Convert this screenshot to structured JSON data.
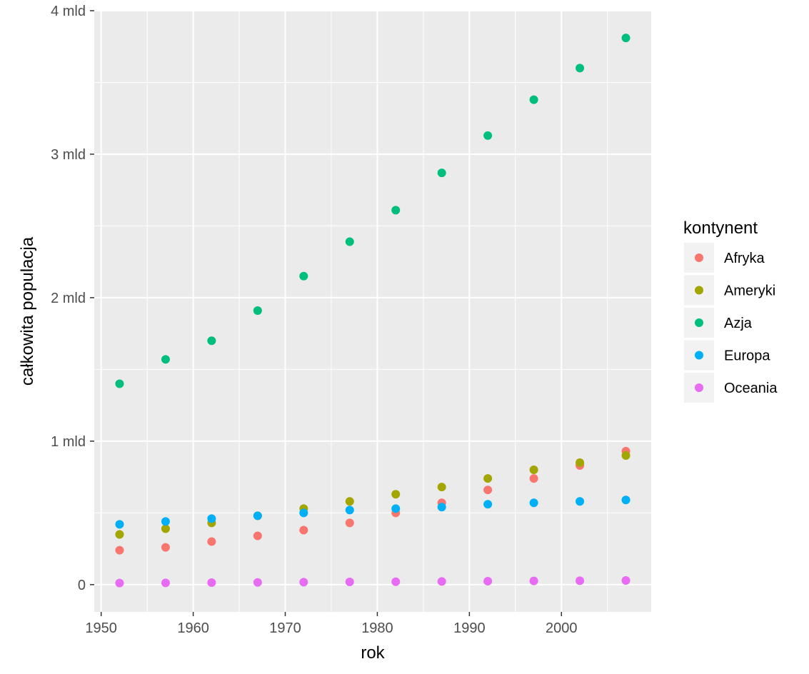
{
  "chart_data": {
    "type": "scatter",
    "title": "",
    "xlabel": "rok",
    "ylabel": "całkowita populacja",
    "xlim": [
      1949.25,
      2009.75
    ],
    "ylim": [
      -0.19,
      4.0
    ],
    "x_ticks": [
      1950,
      1960,
      1970,
      1980,
      1990,
      2000
    ],
    "x_tick_labels": [
      "1950",
      "1960",
      "1970",
      "1980",
      "1990",
      "2000"
    ],
    "y_ticks": [
      0,
      1,
      2,
      3,
      4
    ],
    "y_tick_labels": [
      "0",
      "1 mld",
      "2 mld",
      "3 mld",
      "4 mld"
    ],
    "grid": true,
    "legend_title": "kontynent",
    "legend_position": "right",
    "x": [
      1952,
      1957,
      1962,
      1967,
      1972,
      1977,
      1982,
      1987,
      1992,
      1997,
      2002,
      2007
    ],
    "series": [
      {
        "name": "Afryka",
        "color": "#F8766D",
        "values": [
          0.24,
          0.26,
          0.3,
          0.34,
          0.38,
          0.43,
          0.5,
          0.57,
          0.66,
          0.74,
          0.83,
          0.93
        ]
      },
      {
        "name": "Ameryki",
        "color": "#A3A500",
        "values": [
          0.35,
          0.39,
          0.43,
          0.48,
          0.53,
          0.58,
          0.63,
          0.68,
          0.74,
          0.8,
          0.85,
          0.9
        ]
      },
      {
        "name": "Azja",
        "color": "#00BF7D",
        "values": [
          1.4,
          1.57,
          1.7,
          1.91,
          2.15,
          2.39,
          2.61,
          2.87,
          3.13,
          3.38,
          3.6,
          3.81
        ]
      },
      {
        "name": "Europa",
        "color": "#00B0F6",
        "values": [
          0.42,
          0.44,
          0.46,
          0.48,
          0.5,
          0.52,
          0.53,
          0.54,
          0.56,
          0.57,
          0.58,
          0.59
        ]
      },
      {
        "name": "Oceania",
        "color": "#E76BF3",
        "values": [
          0.011,
          0.012,
          0.014,
          0.015,
          0.017,
          0.019,
          0.02,
          0.022,
          0.024,
          0.026,
          0.027,
          0.029
        ]
      }
    ]
  }
}
